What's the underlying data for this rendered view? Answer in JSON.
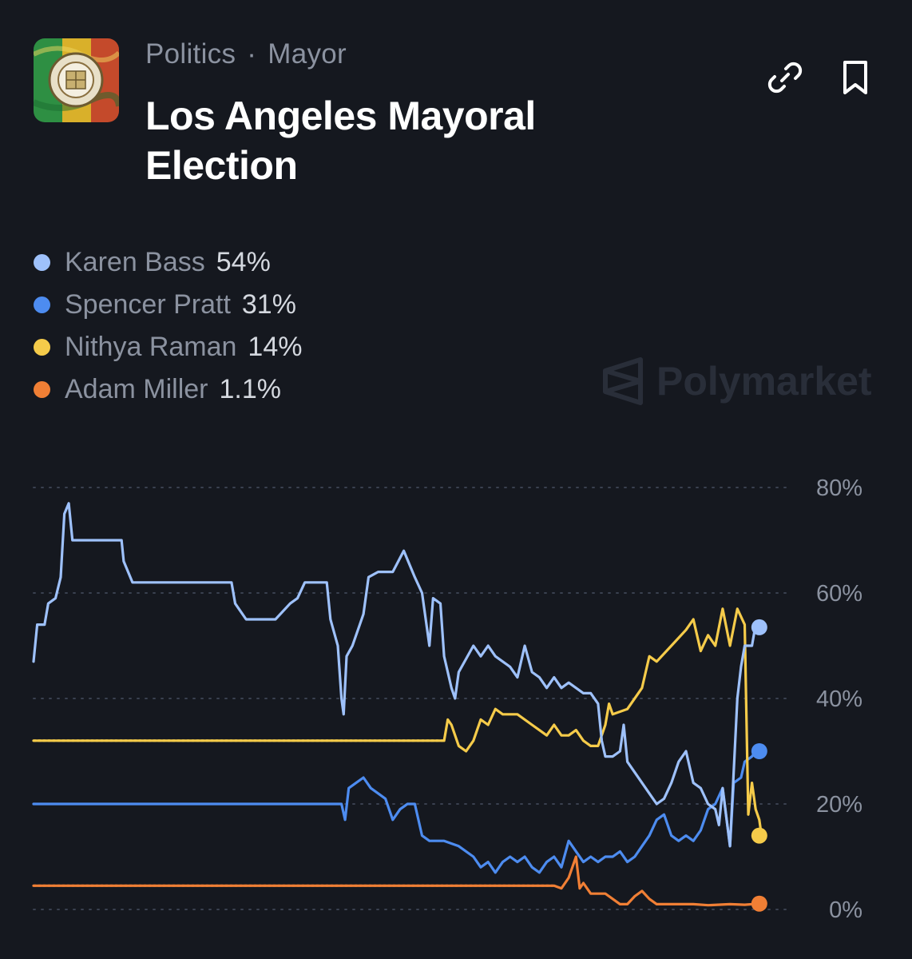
{
  "breadcrumb": {
    "category": "Politics",
    "separator": "·",
    "subcategory": "Mayor"
  },
  "title": "Los Angeles Mayoral Election",
  "icons": {
    "link": "link-icon",
    "bookmark": "bookmark-icon",
    "logo": "los-angeles-seal-flag-logo"
  },
  "watermark": "Polymarket",
  "legend": [
    {
      "name": "Karen Bass",
      "value": "54%",
      "color": "#9ec1fb"
    },
    {
      "name": "Spencer Pratt",
      "value": "31%",
      "color": "#4d8cf0"
    },
    {
      "name": "Nithya Raman",
      "value": "14%",
      "color": "#f5cb4a"
    },
    {
      "name": "Adam Miller",
      "value": "1.1%",
      "color": "#f07f35"
    }
  ],
  "chart_data": {
    "type": "line",
    "x_index_range": [
      0,
      100
    ],
    "ylim": [
      0,
      80
    ],
    "yticks": [
      0,
      20,
      40,
      60,
      80
    ],
    "ytick_labels": [
      "0%",
      "20%",
      "40%",
      "60%",
      "80%"
    ],
    "grid": true,
    "y_axis_position": "right",
    "series": [
      {
        "name": "Karen Bass",
        "color": "#9ec1fb",
        "points": [
          [
            0,
            47
          ],
          [
            0.5,
            54
          ],
          [
            1.5,
            54
          ],
          [
            2,
            58
          ],
          [
            3,
            59
          ],
          [
            3.7,
            63
          ],
          [
            4.2,
            75
          ],
          [
            4.8,
            77
          ],
          [
            5.3,
            70
          ],
          [
            7,
            70
          ],
          [
            12,
            70
          ],
          [
            12.3,
            66
          ],
          [
            13.5,
            62
          ],
          [
            18,
            62
          ],
          [
            24,
            62
          ],
          [
            27,
            62
          ],
          [
            27.5,
            58
          ],
          [
            29,
            55
          ],
          [
            33,
            55
          ],
          [
            35,
            58
          ],
          [
            36,
            59
          ],
          [
            37,
            62
          ],
          [
            40,
            62
          ],
          [
            40.5,
            55
          ],
          [
            41.5,
            50
          ],
          [
            42,
            40
          ],
          [
            42.3,
            37
          ],
          [
            42.7,
            48
          ],
          [
            43.5,
            50
          ],
          [
            44.5,
            54
          ],
          [
            45,
            56
          ],
          [
            45.7,
            63
          ],
          [
            47,
            64
          ],
          [
            49,
            64
          ],
          [
            50.5,
            68
          ],
          [
            52,
            63
          ],
          [
            53,
            60
          ],
          [
            54,
            50
          ],
          [
            54.5,
            59
          ],
          [
            55.5,
            58
          ],
          [
            56,
            48
          ],
          [
            57,
            42
          ],
          [
            57.5,
            40
          ],
          [
            58,
            45
          ],
          [
            60,
            50
          ],
          [
            61,
            48
          ],
          [
            62,
            50
          ],
          [
            63,
            48
          ],
          [
            64,
            47
          ],
          [
            65,
            46
          ],
          [
            66,
            44
          ],
          [
            67,
            50
          ],
          [
            68,
            45
          ],
          [
            69,
            44
          ],
          [
            70,
            42
          ],
          [
            71,
            44
          ],
          [
            72,
            42
          ],
          [
            73,
            43
          ],
          [
            74,
            42
          ],
          [
            75,
            41
          ],
          [
            76,
            41
          ],
          [
            77,
            39
          ],
          [
            77.5,
            32
          ],
          [
            78,
            29
          ],
          [
            79,
            29
          ],
          [
            80,
            30
          ],
          [
            80.5,
            35
          ],
          [
            81,
            28
          ],
          [
            82,
            26
          ],
          [
            84,
            22
          ],
          [
            85,
            20
          ],
          [
            86,
            21
          ],
          [
            87,
            24
          ],
          [
            88,
            28
          ],
          [
            89,
            30
          ],
          [
            89.5,
            27
          ],
          [
            90,
            24
          ],
          [
            91,
            23
          ],
          [
            92,
            20
          ],
          [
            93,
            19
          ],
          [
            93.5,
            16
          ],
          [
            94,
            23
          ],
          [
            95,
            12
          ],
          [
            96,
            40
          ],
          [
            96.5,
            46
          ],
          [
            97,
            50
          ],
          [
            98,
            50
          ],
          [
            98.5,
            54
          ]
        ]
      },
      {
        "name": "Spencer Pratt",
        "color": "#4d8cf0",
        "points": [
          [
            0,
            20
          ],
          [
            42,
            20
          ],
          [
            42.5,
            17
          ],
          [
            43,
            23
          ],
          [
            44,
            24
          ],
          [
            45,
            25
          ],
          [
            46,
            23
          ],
          [
            47,
            22
          ],
          [
            48,
            21
          ],
          [
            49,
            17
          ],
          [
            50,
            19
          ],
          [
            51,
            20
          ],
          [
            52,
            20
          ],
          [
            53,
            14
          ],
          [
            54,
            13
          ],
          [
            56,
            13
          ],
          [
            58,
            12
          ],
          [
            60,
            10
          ],
          [
            61,
            8
          ],
          [
            62,
            9
          ],
          [
            63,
            7
          ],
          [
            64,
            9
          ],
          [
            65,
            10
          ],
          [
            66,
            9
          ],
          [
            67,
            10
          ],
          [
            68,
            8
          ],
          [
            69,
            7
          ],
          [
            70,
            9
          ],
          [
            71,
            10
          ],
          [
            72,
            8
          ],
          [
            73,
            13
          ],
          [
            74,
            11
          ],
          [
            75,
            9
          ],
          [
            76,
            10
          ],
          [
            77,
            9
          ],
          [
            78,
            10
          ],
          [
            79,
            10
          ],
          [
            80,
            11
          ],
          [
            81,
            9
          ],
          [
            82,
            10
          ],
          [
            83,
            12
          ],
          [
            84,
            14
          ],
          [
            85,
            17
          ],
          [
            86,
            18
          ],
          [
            87,
            14
          ],
          [
            88,
            13
          ],
          [
            89,
            14
          ],
          [
            90,
            13
          ],
          [
            91,
            15
          ],
          [
            92,
            19
          ],
          [
            93,
            20
          ],
          [
            94,
            23
          ],
          [
            95,
            12
          ],
          [
            95.5,
            24
          ],
          [
            96.5,
            25
          ],
          [
            97,
            28
          ],
          [
            98,
            29
          ],
          [
            98.5,
            30
          ]
        ]
      },
      {
        "name": "Nithya Raman",
        "color": "#f5cb4a",
        "points": [
          [
            0,
            32
          ],
          [
            56,
            32
          ],
          [
            56.5,
            36
          ],
          [
            57,
            35
          ],
          [
            58,
            31
          ],
          [
            59,
            30
          ],
          [
            60,
            32
          ],
          [
            61,
            36
          ],
          [
            62,
            35
          ],
          [
            63,
            38
          ],
          [
            64,
            37
          ],
          [
            66,
            37
          ],
          [
            68,
            35
          ],
          [
            69,
            34
          ],
          [
            70,
            33
          ],
          [
            71,
            35
          ],
          [
            72,
            33
          ],
          [
            73,
            33
          ],
          [
            74,
            34
          ],
          [
            75,
            32
          ],
          [
            76,
            31
          ],
          [
            77,
            31
          ],
          [
            78,
            35
          ],
          [
            78.5,
            39
          ],
          [
            79,
            37
          ],
          [
            81,
            38
          ],
          [
            83,
            42
          ],
          [
            84,
            48
          ],
          [
            85,
            47
          ],
          [
            87,
            50
          ],
          [
            89,
            53
          ],
          [
            90,
            55
          ],
          [
            91,
            49
          ],
          [
            92,
            52
          ],
          [
            93,
            50
          ],
          [
            94,
            57
          ],
          [
            95,
            50
          ],
          [
            96,
            57
          ],
          [
            97,
            54
          ],
          [
            97.5,
            18
          ],
          [
            98,
            24
          ],
          [
            98.5,
            19
          ],
          [
            99,
            17
          ],
          [
            99.3,
            14
          ]
        ]
      },
      {
        "name": "Adam Miller",
        "color": "#f07f35",
        "points": [
          [
            0,
            4.5
          ],
          [
            71,
            4.5
          ],
          [
            72,
            4
          ],
          [
            73,
            6
          ],
          [
            74,
            10
          ],
          [
            74.5,
            4
          ],
          [
            75,
            5
          ],
          [
            76,
            3
          ],
          [
            78,
            3
          ],
          [
            79,
            2
          ],
          [
            80,
            1
          ],
          [
            81,
            1
          ],
          [
            82,
            2.5
          ],
          [
            83,
            3.5
          ],
          [
            84,
            2
          ],
          [
            85,
            1
          ],
          [
            87,
            1
          ],
          [
            90,
            1
          ],
          [
            92,
            0.8
          ],
          [
            95,
            1
          ],
          [
            97,
            0.9
          ],
          [
            99,
            1.1
          ]
        ]
      }
    ],
    "end_markers": [
      {
        "series": "Karen Bass",
        "x": 99,
        "y": 53.5
      },
      {
        "series": "Spencer Pratt",
        "x": 99,
        "y": 30
      },
      {
        "series": "Nithya Raman",
        "x": 99,
        "y": 14
      },
      {
        "series": "Adam Miller",
        "x": 99,
        "y": 1.1
      }
    ],
    "pre_listing_dotted_levels": [
      {
        "series": "Nithya Raman",
        "y": 32,
        "x_end": 56
      },
      {
        "series": "Spencer Pratt",
        "y": 20,
        "x_end": 42
      },
      {
        "series": "Adam Miller",
        "y": 4.5,
        "x_end": 71
      }
    ]
  }
}
